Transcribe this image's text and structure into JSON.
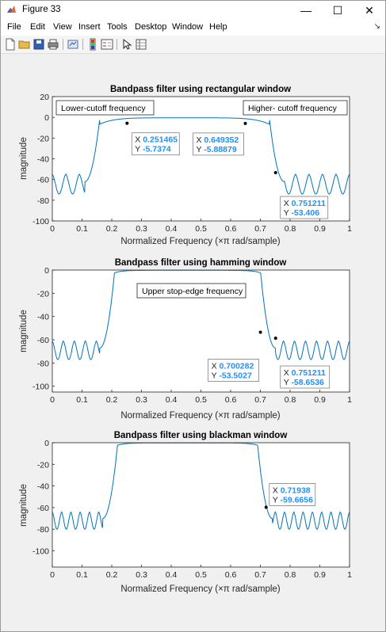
{
  "window": {
    "title": "Figure 33",
    "minimize": "—",
    "maximize": "☐",
    "close": "✕"
  },
  "menu": [
    "File",
    "Edit",
    "View",
    "Insert",
    "Tools",
    "Desktop",
    "Window",
    "Help"
  ],
  "toolbar_icons": [
    "new-file-icon",
    "open-folder-icon",
    "save-icon",
    "print-icon",
    "link-figure-icon",
    "insert-colorbar-icon",
    "insert-legend-icon",
    "edit-plot-icon",
    "property-inspector-icon"
  ],
  "colors": {
    "line": "#0072BD",
    "datatip_value": "#1e90ff",
    "axes": "#262626"
  },
  "chart_data": [
    {
      "type": "line",
      "title": "Bandpass filter using rectangular window",
      "xlabel": "Normalized Frequency  (×π rad/sample)",
      "ylabel": "magnitude",
      "xlim": [
        0,
        1
      ],
      "ylim": [
        -100,
        20
      ],
      "xticks": [
        "0",
        "0.1",
        "0.2",
        "0.3",
        "0.4",
        "0.5",
        "0.6",
        "0.7",
        "0.8",
        "0.9",
        "1"
      ],
      "yticks": [
        "20",
        "0",
        "-20",
        "-40",
        "-60",
        "-80",
        "-100"
      ],
      "yticks_values": [
        20,
        0,
        -20,
        -40,
        -60,
        -80,
        -100
      ],
      "passband": [
        0.16,
        0.73
      ],
      "stopband_level": -62,
      "ripple_depth": 12,
      "annotations": [
        "Lower-cutoff frequency",
        "Higher- cutoff frequency"
      ],
      "datatips": [
        {
          "x": "0.251465",
          "y": "-5.7374",
          "px": 0.251465,
          "py": -5.7374
        },
        {
          "x": "0.649352",
          "y": "-5.88879",
          "px": 0.649352,
          "py": -5.88879
        },
        {
          "x": "0.751211",
          "y": "-53.406",
          "px": 0.751211,
          "py": -53.406
        }
      ]
    },
    {
      "type": "line",
      "title": "Bandpass filter using hamming window",
      "xlabel": "Normalized Frequency  (×π rad/sample)",
      "ylabel": "magnitude",
      "xlim": [
        0,
        1
      ],
      "ylim": [
        -105,
        0
      ],
      "xticks": [
        "0",
        "0.1",
        "0.2",
        "0.3",
        "0.4",
        "0.5",
        "0.6",
        "0.7",
        "0.8",
        "0.9",
        "1"
      ],
      "yticks": [
        "0",
        "-20",
        "-40",
        "-60",
        "-80",
        "-100"
      ],
      "yticks_values": [
        0,
        -20,
        -40,
        -60,
        -80,
        -100
      ],
      "passband": [
        0.21,
        0.7
      ],
      "stopband_level": -67,
      "ripple_depth": 10,
      "annotations": [
        "Upper stop-edge frequency"
      ],
      "datatips": [
        {
          "x": "0.700282",
          "y": "-53.5027",
          "px": 0.700282,
          "py": -53.5027
        },
        {
          "x": "0.751211",
          "y": "-58.6536",
          "px": 0.751211,
          "py": -58.6536
        }
      ]
    },
    {
      "type": "line",
      "title": "Bandpass filter using blackman window",
      "xlabel": "Normalized Frequency  (×π rad/sample)",
      "ylabel": "magnitude",
      "xlim": [
        0,
        1
      ],
      "ylim": [
        -115,
        0
      ],
      "xticks": [
        "0",
        "0.1",
        "0.2",
        "0.3",
        "0.4",
        "0.5",
        "0.6",
        "0.7",
        "0.8",
        "0.9",
        "1"
      ],
      "yticks": [
        "0",
        "-20",
        "-40",
        "-60",
        "-80",
        "-100"
      ],
      "yticks_values": [
        0,
        -20,
        -40,
        -60,
        -80,
        -100
      ],
      "passband": [
        0.22,
        0.69
      ],
      "stopband_level": -70,
      "ripple_depth": 10,
      "annotations": [],
      "datatips": [
        {
          "x": "0.71938",
          "y": "-59.6656",
          "px": 0.71938,
          "py": -59.6656
        }
      ]
    }
  ]
}
